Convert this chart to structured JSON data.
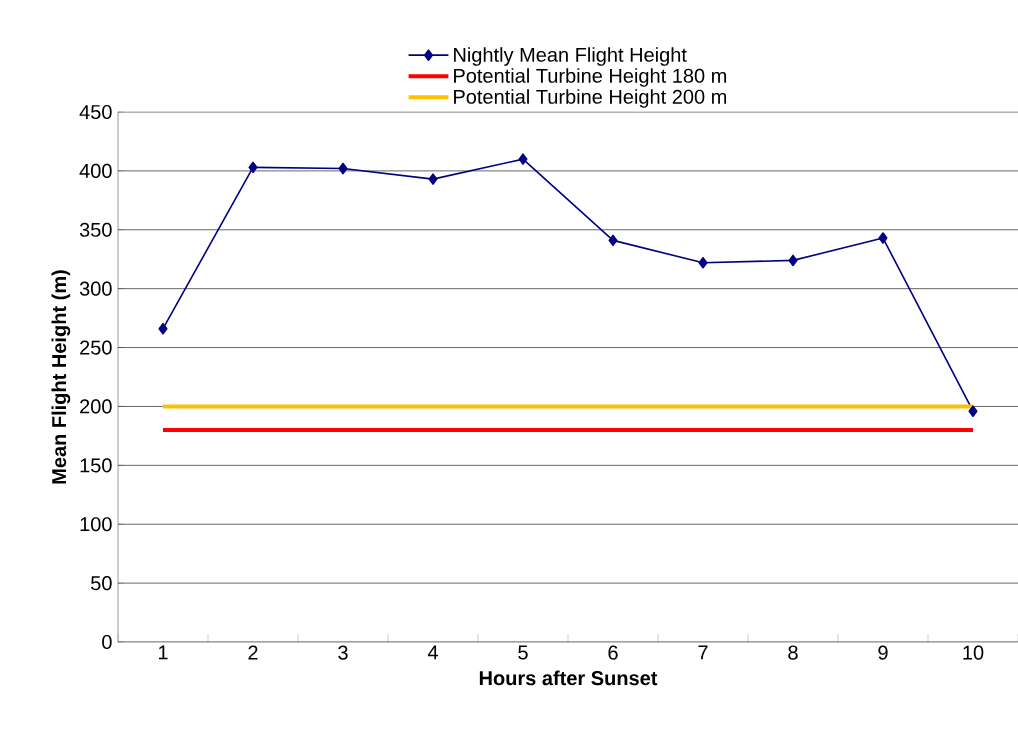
{
  "chart_data": {
    "type": "line",
    "xlabel": "Hours after Sunset",
    "ylabel": "Mean Flight Height (m)",
    "categories": [
      "1",
      "2",
      "3",
      "4",
      "5",
      "6",
      "7",
      "8",
      "9",
      "10"
    ],
    "series": [
      {
        "name": "Nightly Mean Flight Height",
        "color": "#000080",
        "marker": "diamond",
        "values": [
          266,
          403,
          402,
          393,
          410,
          341,
          322,
          324,
          343,
          196
        ]
      },
      {
        "name": "Potential Turbine Height 180 m",
        "color": "#ff0000",
        "marker": "none",
        "values": [
          180,
          180,
          180,
          180,
          180,
          180,
          180,
          180,
          180,
          180
        ]
      },
      {
        "name": "Potential Turbine Height 200 m",
        "color": "#ffc000",
        "marker": "none",
        "values": [
          200,
          200,
          200,
          200,
          200,
          200,
          200,
          200,
          200,
          200
        ]
      }
    ],
    "ylim": [
      0,
      450
    ],
    "yticks": [
      0,
      50,
      100,
      150,
      200,
      250,
      300,
      350,
      400,
      450
    ],
    "grid": "y",
    "legend": "top"
  }
}
